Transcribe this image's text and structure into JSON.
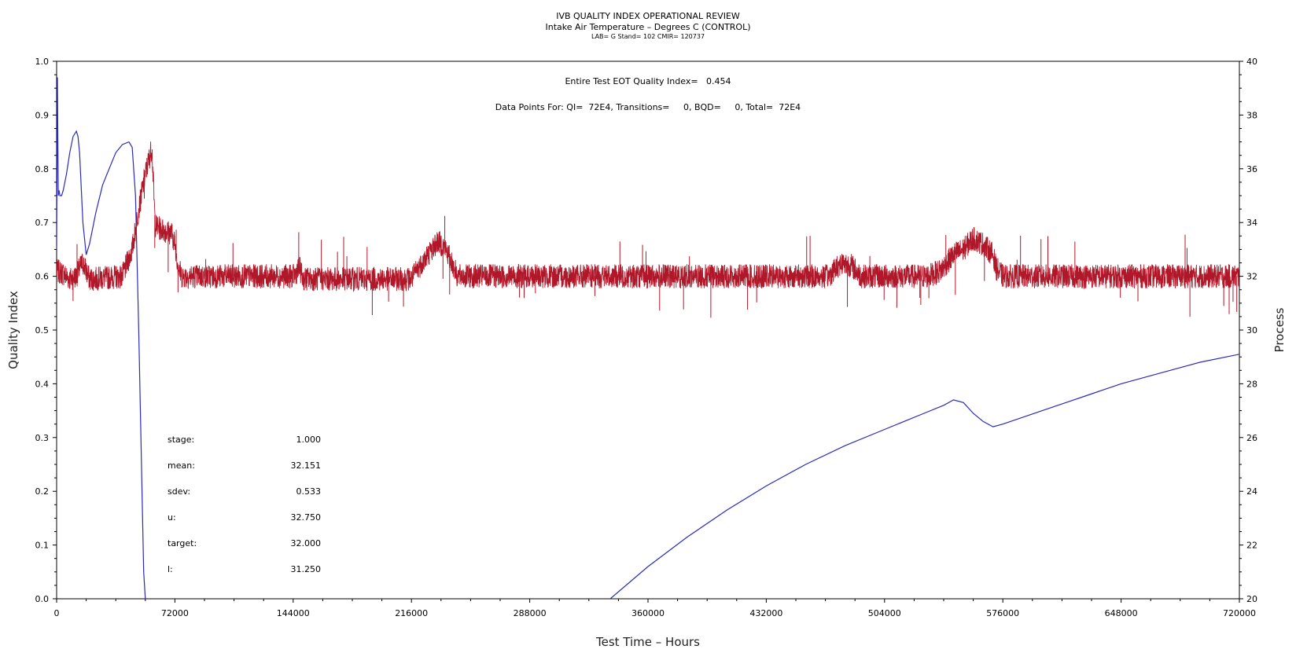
{
  "header": {
    "title": "IVB QUALITY INDEX OPERATIONAL REVIEW",
    "subtitle": "Intake Air Temperature – Degrees C (CONTROL)",
    "meta": "LAB= G Stand= 102 CMIR= 120737"
  },
  "annotations": {
    "eot_quality": "Entire Test EOT Quality Index=   0.454",
    "data_points": "Data Points For: QI=  72E4, Transitions=     0, BQD=     0, Total=  72E4"
  },
  "stats": [
    {
      "label": "stage:",
      "value": "1.000"
    },
    {
      "label": "mean:",
      "value": "32.151"
    },
    {
      "label": "sdev:",
      "value": "0.533"
    },
    {
      "label": "u:",
      "value": "32.750"
    },
    {
      "label": "target:",
      "value": "32.000"
    },
    {
      "label": "l:",
      "value": "31.250"
    }
  ],
  "colors": {
    "quality_index": "#2b2bb8",
    "process": "#b0182a"
  },
  "chart_data": {
    "type": "line",
    "xlabel": "Test Time – Hours",
    "ylabel": "Quality Index",
    "ylabel_right": "Process",
    "xlim": [
      0,
      720000
    ],
    "ylim": [
      0,
      1.0
    ],
    "ylim_right": [
      20,
      40
    ],
    "x_ticks": [
      0,
      72000,
      144000,
      216000,
      288000,
      360000,
      432000,
      504000,
      576000,
      648000,
      720000
    ],
    "y_ticks": [
      0.0,
      0.1,
      0.2,
      0.3,
      0.4,
      0.5,
      0.6,
      0.7,
      0.8,
      0.9,
      1.0
    ],
    "y_tick_labels": [
      "0.0",
      "0.1",
      "0.2",
      "0.3",
      "0.4",
      "0.5",
      "0.6",
      "0.7",
      "0.8",
      "0.9",
      "1.0"
    ],
    "y2_ticks": [
      20,
      22,
      24,
      26,
      28,
      30,
      32,
      34,
      36,
      38,
      40
    ],
    "grid": false,
    "series": [
      {
        "axis": "left",
        "x": [
          0,
          500,
          1000,
          1500,
          2000,
          3000,
          4000,
          6000,
          8000,
          10000,
          12000,
          13000,
          14000,
          16000,
          18000,
          20000,
          24000,
          28000,
          32000,
          36000,
          40000,
          44000,
          46000,
          48000,
          50000,
          52000,
          53000,
          54000
        ],
        "y": [
          0.65,
          0.97,
          0.75,
          0.76,
          0.75,
          0.75,
          0.76,
          0.79,
          0.83,
          0.86,
          0.87,
          0.86,
          0.83,
          0.7,
          0.64,
          0.66,
          0.72,
          0.77,
          0.8,
          0.83,
          0.845,
          0.85,
          0.84,
          0.75,
          0.5,
          0.2,
          0.05,
          0.0
        ]
      },
      {
        "axis": "left",
        "x": [
          337000,
          360000,
          384000,
          408000,
          432000,
          456000,
          480000,
          504000,
          528000,
          540000,
          546000,
          552000,
          558000,
          564000,
          570000,
          576000,
          600000,
          624000,
          648000,
          672000,
          696000,
          720000
        ],
        "y": [
          0.0,
          0.06,
          0.115,
          0.165,
          0.21,
          0.25,
          0.285,
          0.315,
          0.345,
          0.36,
          0.37,
          0.365,
          0.345,
          0.33,
          0.32,
          0.325,
          0.35,
          0.375,
          0.4,
          0.42,
          0.44,
          0.455
        ]
      },
      {
        "axis": "right",
        "x": [
          0,
          4000,
          8000,
          12000,
          14000,
          16000,
          18000,
          20000,
          22000,
          40000,
          46000,
          50000,
          54000,
          58000,
          60000,
          62000,
          70000,
          72000,
          74000,
          76000,
          144000,
          148000,
          150000,
          216000,
          220000,
          226000,
          232000,
          236000,
          240000,
          244000,
          330000,
          360000,
          372000,
          400000,
          412000,
          470000,
          474000,
          478000,
          484000,
          488000,
          490000,
          530000,
          538000,
          546000,
          552000,
          558000,
          564000,
          570000,
          572000,
          576000,
          720000
        ],
        "y": [
          32.2,
          32.1,
          31.9,
          32.0,
          32.3,
          32.5,
          32.2,
          31.9,
          31.9,
          32.0,
          33.0,
          34.5,
          35.8,
          36.8,
          33.9,
          33.8,
          33.6,
          33.2,
          32.4,
          32.0,
          32.0,
          32.3,
          31.9,
          31.9,
          32.3,
          32.8,
          33.3,
          33.1,
          32.6,
          32.0,
          32.0,
          32.0,
          32.0,
          32.0,
          32.0,
          32.0,
          32.3,
          32.5,
          32.4,
          32.1,
          32.0,
          32.0,
          32.2,
          32.8,
          33.0,
          33.4,
          33.2,
          32.8,
          32.3,
          32.0,
          32.0
        ]
      }
    ]
  }
}
